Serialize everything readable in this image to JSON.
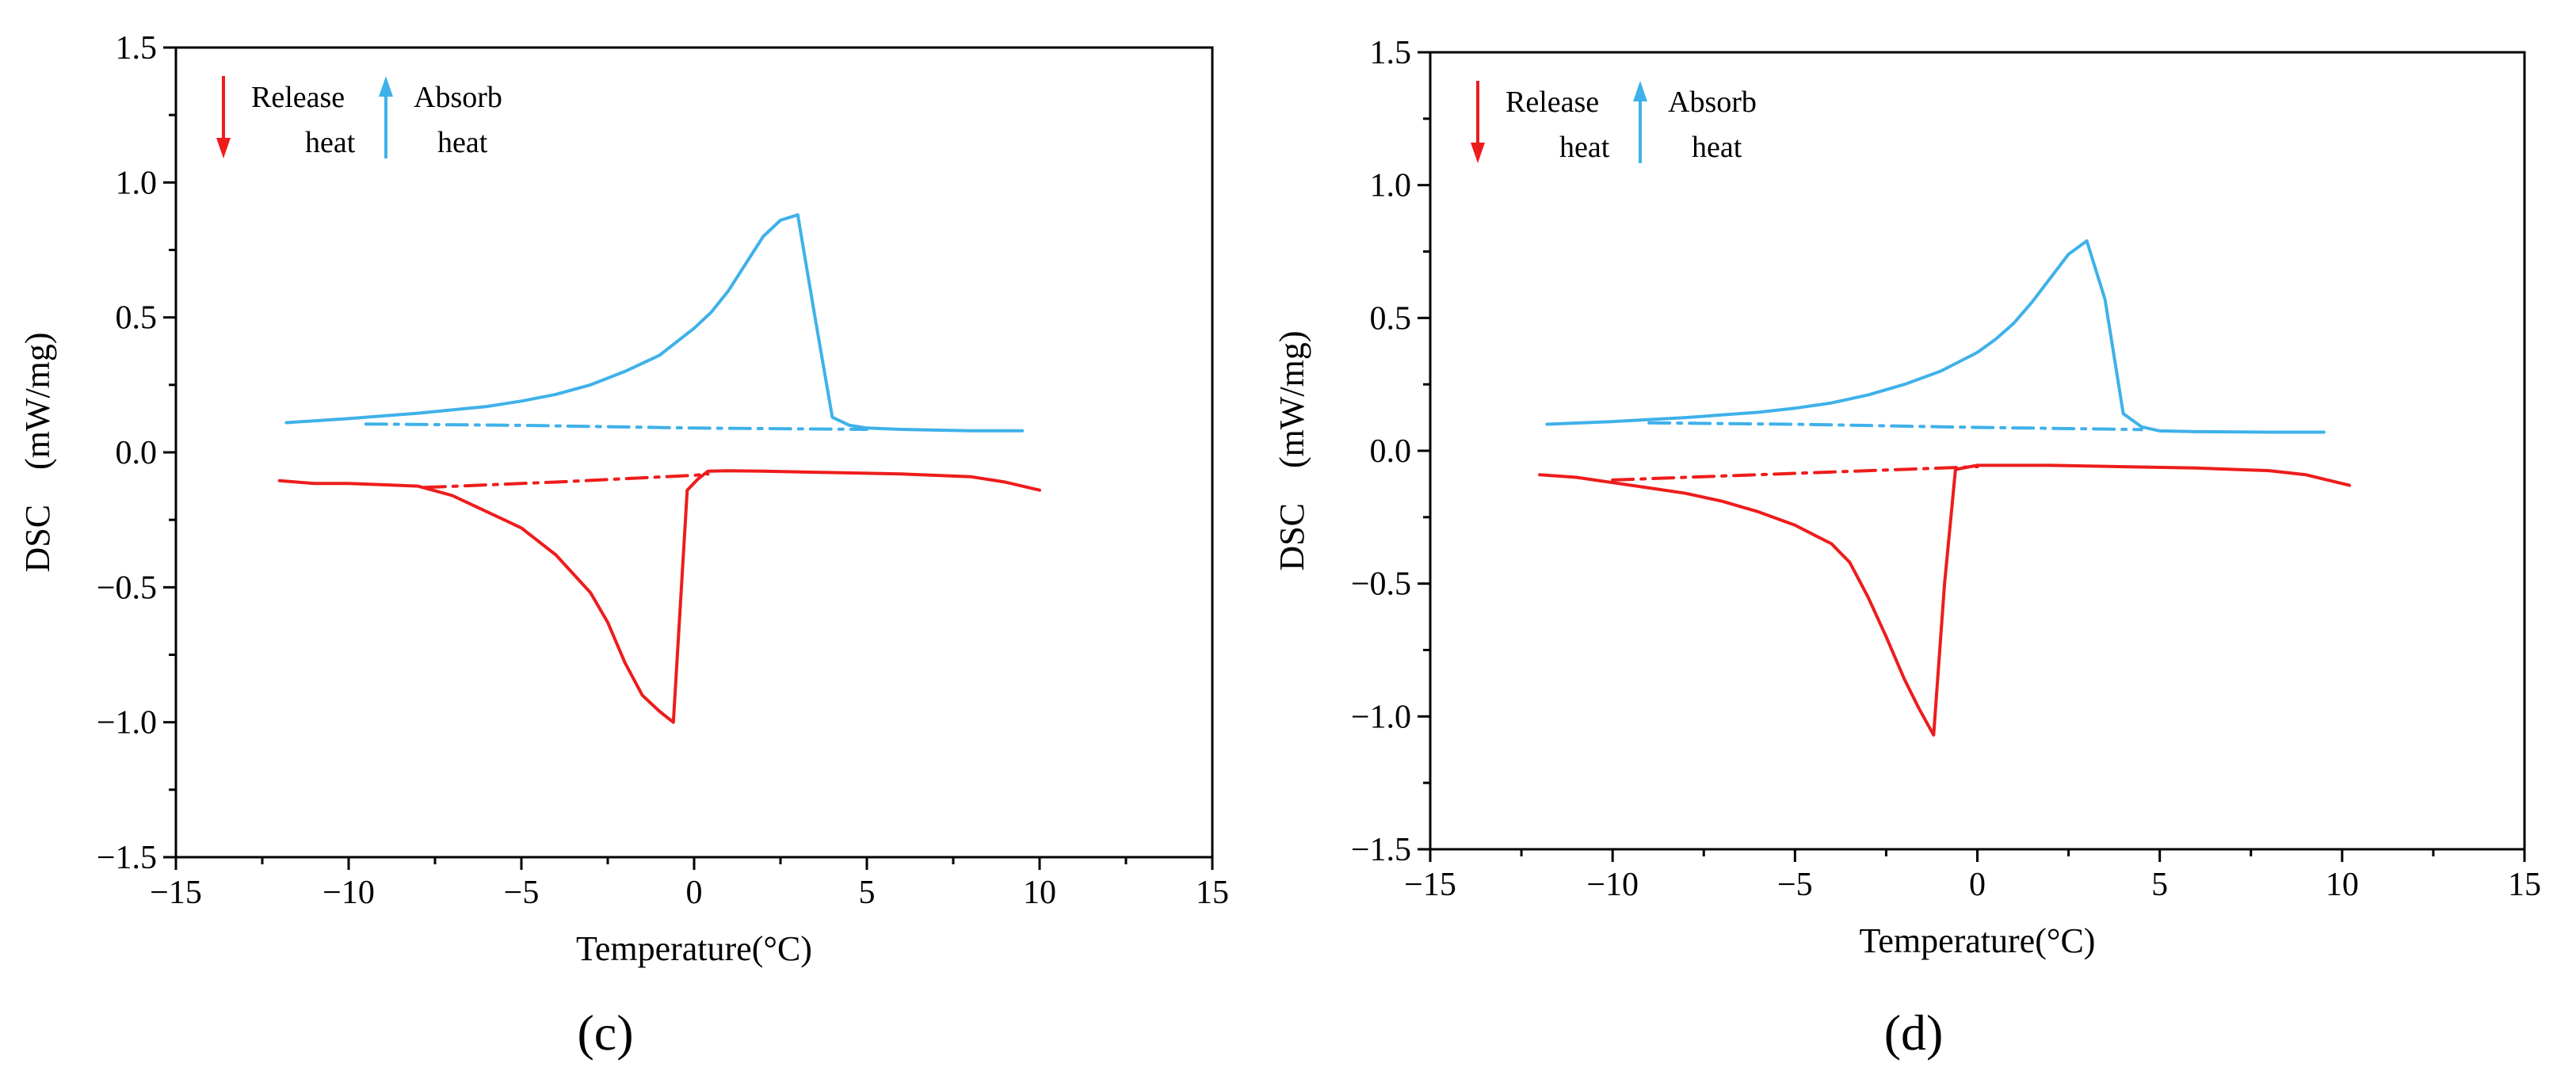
{
  "chart_data": [
    {
      "type": "line",
      "panel_label": "(c)",
      "xlabel": "Temperature(°C)",
      "ylabel": "DSC　(mW/mg)",
      "xlim": [
        -15,
        15
      ],
      "ylim": [
        -1.5,
        1.5
      ],
      "xticks": [
        -15,
        -10,
        -5,
        0,
        5,
        10,
        15
      ],
      "yticks": [
        -1.5,
        -1.0,
        -0.5,
        0.0,
        0.5,
        1.0,
        1.5
      ],
      "xtick_labels": [
        "−15",
        "−10",
        "−5",
        "0",
        "5",
        "10",
        "15"
      ],
      "ytick_labels": [
        "−1.5",
        "−1.0",
        "−0.5",
        "0.0",
        "0.5",
        "1.0",
        "1.5"
      ],
      "legend": [
        {
          "label_line1": "Release",
          "label_line2": "heat",
          "direction": "down",
          "color": "#ee1c1c"
        },
        {
          "label_line1": "Absorb",
          "label_line2": "heat",
          "direction": "up",
          "color": "#3fb1ea"
        }
      ],
      "series": [
        {
          "name": "absorb heat",
          "color": "#3fb1ea",
          "style": "solid",
          "x": [
            -11.8,
            -10,
            -8,
            -6,
            -5,
            -4,
            -3,
            -2,
            -1,
            0,
            0.5,
            1,
            1.5,
            2,
            2.5,
            3,
            3.5,
            4,
            4.5,
            5,
            6,
            8,
            9.5
          ],
          "y": [
            0.11,
            0.125,
            0.145,
            0.17,
            0.19,
            0.215,
            0.25,
            0.3,
            0.36,
            0.46,
            0.52,
            0.6,
            0.7,
            0.8,
            0.86,
            0.88,
            0.5,
            0.13,
            0.1,
            0.09,
            0.085,
            0.08,
            0.08
          ]
        },
        {
          "name": "absorb heat baseline",
          "color": "#3fb1ea",
          "style": "dashdot",
          "x": [
            -9.5,
            -5,
            0,
            5
          ],
          "y": [
            0.105,
            0.1,
            0.09,
            0.085
          ]
        },
        {
          "name": "release heat",
          "color": "#ee1c1c",
          "style": "solid",
          "x": [
            -12,
            -11,
            -10,
            -9,
            -8,
            -7,
            -6,
            -5,
            -4,
            -3,
            -2.5,
            -2,
            -1.5,
            -1,
            -0.6,
            -0.2,
            0.1,
            0.4,
            1,
            2,
            4,
            6,
            8,
            9,
            10
          ],
          "y": [
            -0.105,
            -0.115,
            -0.115,
            -0.12,
            -0.125,
            -0.16,
            -0.22,
            -0.28,
            -0.38,
            -0.52,
            -0.63,
            -0.78,
            -0.9,
            -0.96,
            -1.0,
            -0.14,
            -0.1,
            -0.07,
            -0.068,
            -0.07,
            -0.075,
            -0.08,
            -0.09,
            -0.11,
            -0.14
          ]
        },
        {
          "name": "release heat baseline",
          "color": "#ee1c1c",
          "style": "dashdot",
          "x": [
            -7.8,
            -4,
            0,
            0.4
          ],
          "y": [
            -0.13,
            -0.11,
            -0.085,
            -0.08
          ]
        }
      ]
    },
    {
      "type": "line",
      "panel_label": "(d)",
      "xlabel": "Temperature(°C)",
      "ylabel": "DSC　(mW/mg)",
      "xlim": [
        -15,
        15
      ],
      "ylim": [
        -1.5,
        1.5
      ],
      "xticks": [
        -15,
        -10,
        -5,
        0,
        5,
        10,
        15
      ],
      "yticks": [
        -1.5,
        -1.0,
        -0.5,
        0.0,
        0.5,
        1.0,
        1.5
      ],
      "xtick_labels": [
        "−15",
        "−10",
        "−5",
        "0",
        "5",
        "10",
        "15"
      ],
      "ytick_labels": [
        "−1.5",
        "−1.0",
        "−0.5",
        "0.0",
        "0.5",
        "1.0",
        "1.5"
      ],
      "legend": [
        {
          "label_line1": "Release",
          "label_line2": "heat",
          "direction": "down",
          "color": "#ee1c1c"
        },
        {
          "label_line1": "Absorb",
          "label_line2": "heat",
          "direction": "up",
          "color": "#3fb1ea"
        }
      ],
      "series": [
        {
          "name": "absorb heat",
          "color": "#3fb1ea",
          "style": "solid",
          "x": [
            -11.8,
            -10,
            -8,
            -6,
            -5,
            -4,
            -3,
            -2,
            -1,
            0,
            0.5,
            1,
            1.5,
            2,
            2.5,
            3,
            3.5,
            4,
            4.5,
            5,
            6,
            8,
            9.5
          ],
          "y": [
            0.1,
            0.11,
            0.125,
            0.145,
            0.16,
            0.18,
            0.21,
            0.25,
            0.3,
            0.37,
            0.42,
            0.48,
            0.56,
            0.65,
            0.74,
            0.79,
            0.57,
            0.14,
            0.09,
            0.075,
            0.072,
            0.07,
            0.07
          ]
        },
        {
          "name": "absorb heat baseline",
          "color": "#3fb1ea",
          "style": "dashdot",
          "x": [
            -9,
            -5,
            0,
            4.5
          ],
          "y": [
            0.105,
            0.1,
            0.088,
            0.08
          ]
        },
        {
          "name": "release heat",
          "color": "#ee1c1c",
          "style": "solid",
          "x": [
            -12,
            -11,
            -10,
            -9,
            -8,
            -7,
            -6,
            -5,
            -4,
            -3.5,
            -3,
            -2.5,
            -2,
            -1.6,
            -1.2,
            -0.9,
            -0.6,
            0,
            2,
            4,
            6,
            8,
            9,
            10.2
          ],
          "y": [
            -0.09,
            -0.1,
            -0.12,
            -0.14,
            -0.16,
            -0.19,
            -0.23,
            -0.28,
            -0.35,
            -0.42,
            -0.55,
            -0.7,
            -0.86,
            -0.97,
            -1.07,
            -0.5,
            -0.07,
            -0.055,
            -0.055,
            -0.06,
            -0.065,
            -0.075,
            -0.09,
            -0.13
          ]
        },
        {
          "name": "release heat baseline",
          "color": "#ee1c1c",
          "style": "dashdot",
          "x": [
            -10,
            -5,
            0,
            0
          ],
          "y": [
            -0.11,
            -0.085,
            -0.06,
            -0.06
          ]
        }
      ]
    }
  ]
}
